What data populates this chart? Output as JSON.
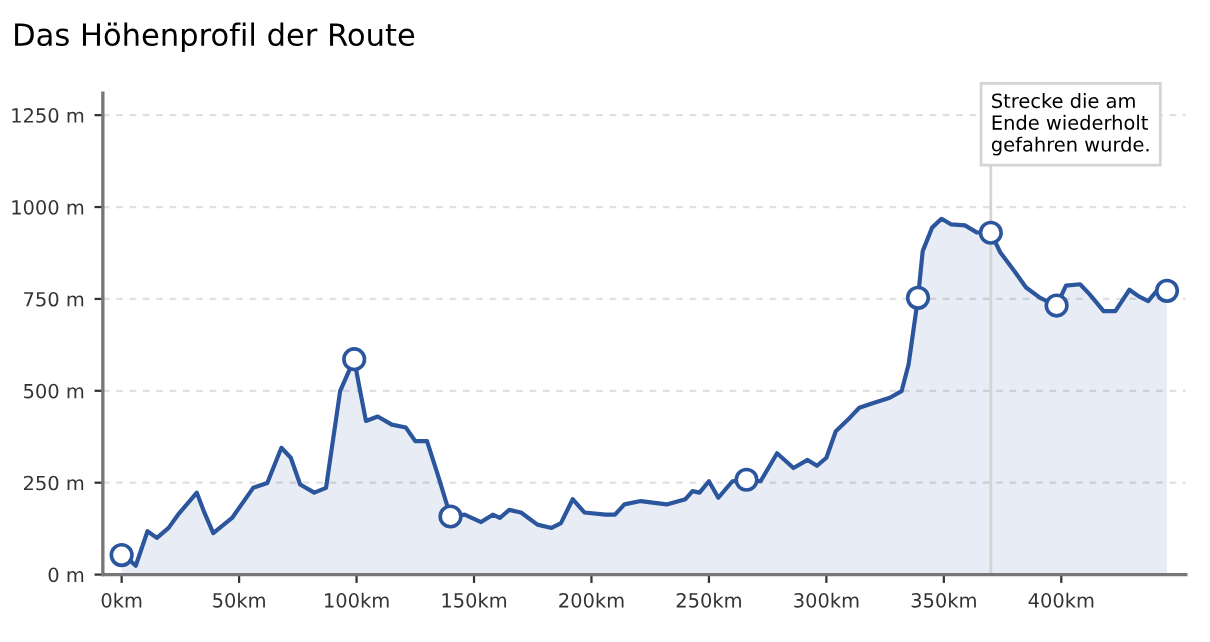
{
  "chart_data": {
    "type": "area",
    "title": "Das Höhenprofil der Route",
    "series": [
      {
        "color": "#2b559c",
        "x": [
          0,
          3,
          6,
          11,
          15,
          20,
          24,
          32,
          35,
          39,
          47,
          56,
          62,
          68,
          72,
          76,
          82,
          87,
          93,
          99,
          101,
          104,
          109,
          115,
          121,
          125,
          130,
          135,
          140,
          146,
          153,
          158,
          161,
          165,
          170,
          177,
          183,
          187,
          192,
          197,
          206,
          210,
          214,
          221,
          232,
          240,
          243,
          246,
          250,
          254,
          260,
          266,
          272,
          279,
          286,
          292,
          296,
          300,
          304,
          310,
          314,
          320,
          327,
          332,
          335,
          339,
          341,
          345,
          349,
          353,
          359,
          364,
          370,
          374,
          380,
          385,
          391,
          398,
          402,
          408,
          412,
          418,
          423,
          429,
          433,
          437,
          441,
          445
        ],
        "values": [
          53,
          42,
          24,
          118,
          100,
          127,
          163,
          223,
          172,
          113,
          154,
          236,
          249,
          345,
          318,
          245,
          223,
          236,
          499,
          586,
          517,
          418,
          430,
          408,
          400,
          363,
          363,
          263,
          158,
          163,
          143,
          163,
          154,
          176,
          169,
          136,
          127,
          140,
          205,
          169,
          163,
          163,
          191,
          200,
          191,
          205,
          227,
          223,
          254,
          209,
          254,
          258,
          254,
          330,
          290,
          312,
          296,
          318,
          390,
          427,
          454,
          467,
          481,
          499,
          572,
          753,
          880,
          944,
          968,
          953,
          950,
          931,
          930,
          877,
          826,
          781,
          753,
          732,
          786,
          790,
          763,
          717,
          717,
          775,
          757,
          744,
          775,
          772
        ]
      },
      {
        "type": "scatter",
        "color": "#2b559c",
        "marker": "circle",
        "x": [
          0,
          99,
          140,
          266,
          339,
          370,
          398,
          445
        ],
        "values": [
          53,
          586,
          158,
          258,
          753,
          930,
          732,
          772
        ]
      }
    ],
    "xlim": [
      -8,
      453
    ],
    "ylim": [
      0,
      1310
    ],
    "xticks": [
      {
        "value": 0,
        "label": "0km"
      },
      {
        "value": 50,
        "label": "50km"
      },
      {
        "value": 100,
        "label": "100km"
      },
      {
        "value": 150,
        "label": "150km"
      },
      {
        "value": 200,
        "label": "200km"
      },
      {
        "value": 250,
        "label": "250km"
      },
      {
        "value": 300,
        "label": "300km"
      },
      {
        "value": 350,
        "label": "350km"
      },
      {
        "value": 400,
        "label": "400km"
      }
    ],
    "yticks": [
      {
        "value": 0,
        "label": "0 m"
      },
      {
        "value": 250,
        "label": "250 m"
      },
      {
        "value": 500,
        "label": "500 m"
      },
      {
        "value": 750,
        "label": "750 m"
      },
      {
        "value": 1000,
        "label": "1000 m"
      },
      {
        "value": 1250,
        "label": "1250 m"
      }
    ],
    "grid": "y",
    "legend": false,
    "ref_lines": [
      {
        "axis": "x",
        "value": 370,
        "label": "Strecke die am\nEnde wiederholt\ngefahren wurde.",
        "color": "#d4d4d4"
      }
    ]
  }
}
